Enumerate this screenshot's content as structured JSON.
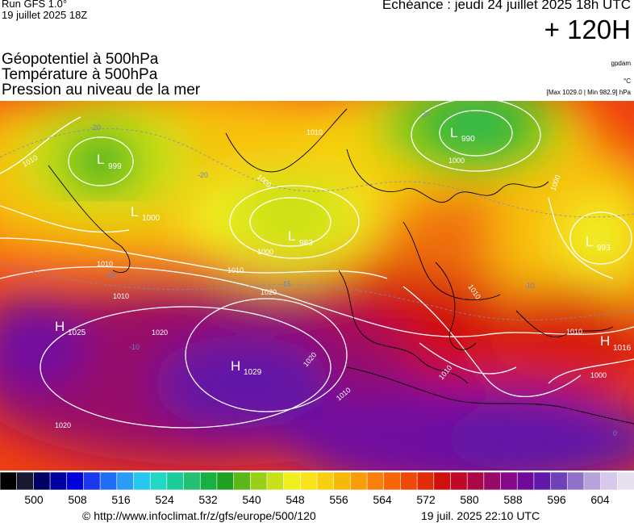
{
  "header": {
    "run_line1": "Run GFS 1.0°",
    "run_line2": "19 juillet 2025 18Z",
    "echeance": "Echéance : jeudi 24 juillet 2025 18h UTC",
    "forecast_hour": "+ 120H"
  },
  "titles": {
    "line1": "Géopotentiel à 500hPa",
    "line2": "Température à 500hPa",
    "line3": "Pression au niveau de la mer"
  },
  "units": {
    "geo": "gpdam",
    "temp": "°C",
    "pressure_range": "[Max 1029.0 | Min 982.9] hPa"
  },
  "map": {
    "pressure_centers": [
      {
        "type": "L",
        "value": "999"
      },
      {
        "type": "L",
        "value": "1000"
      },
      {
        "type": "L",
        "value": "983"
      },
      {
        "type": "L",
        "value": "990"
      },
      {
        "type": "L",
        "value": "993"
      },
      {
        "type": "H",
        "value": "1025"
      },
      {
        "type": "H",
        "value": "1029"
      },
      {
        "type": "H",
        "value": "1016"
      }
    ],
    "isobar_labels": [
      "1010",
      "1010",
      "1010",
      "1010",
      "1000",
      "1000",
      "1000",
      "1000",
      "1010",
      "1020",
      "1020",
      "1020",
      "1020",
      "1010",
      "1010",
      "1010",
      "1010",
      "1000"
    ],
    "temperature_labels": [
      "-20",
      "-20",
      "-20",
      "-15",
      "-15",
      "-10",
      "-10",
      "0"
    ]
  },
  "colorscale": {
    "tick_labels": [
      "500",
      "508",
      "516",
      "524",
      "532",
      "540",
      "548",
      "556",
      "564",
      "572",
      "580",
      "588",
      "596",
      "604"
    ],
    "colors": [
      "#000000",
      "#181830",
      "#000060",
      "#0000a0",
      "#0000d8",
      "#1a38f0",
      "#1e6cf8",
      "#2a9cf6",
      "#26c8f0",
      "#22d8c4",
      "#1ccc98",
      "#22c070",
      "#18b040",
      "#20a020",
      "#5cb818",
      "#98d018",
      "#c8e018",
      "#f0f020",
      "#f8e418",
      "#f8d010",
      "#f8b808",
      "#f89c08",
      "#f88008",
      "#f86408",
      "#f04808",
      "#e02c08",
      "#d01010",
      "#c00828",
      "#ac0848",
      "#980868",
      "#860888",
      "#700898",
      "#6018a8",
      "#7040b8",
      "#9070c8",
      "#b8a0d8",
      "#d8c8ec",
      "#e8e0f0"
    ]
  },
  "footer": {
    "url": "© http://www.infoclimat.fr/z/gfs/europe/500/120",
    "timestamp": "19 juil. 2025 22:10 UTC"
  }
}
